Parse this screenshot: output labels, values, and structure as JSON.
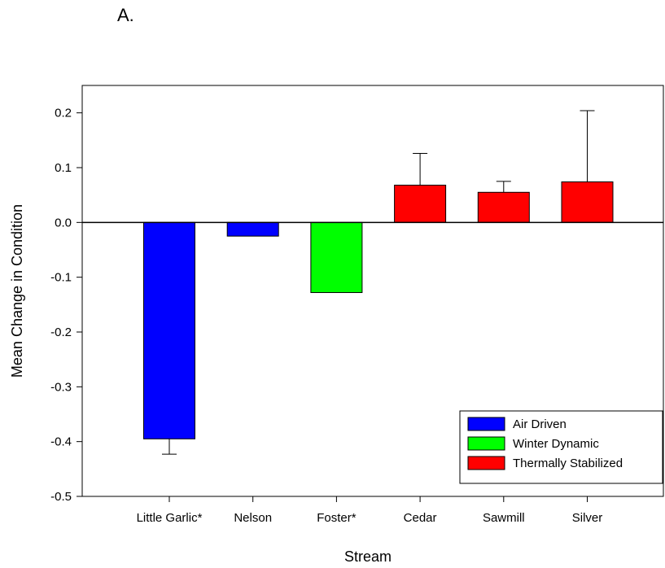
{
  "panel_label": "A.",
  "colors": {
    "Air Driven": "#0000ff",
    "Winter Dynamic": "#00ff00",
    "Thermally Stabilized": "#ff0000"
  },
  "chart_data": {
    "type": "bar",
    "title": "",
    "xlabel": "Stream",
    "ylabel": "Mean Change in Condition",
    "ylim": [
      -0.5,
      0.25
    ],
    "yticks": [
      -0.5,
      -0.4,
      -0.3,
      -0.2,
      -0.1,
      0.0,
      0.1,
      0.2
    ],
    "ytick_labels": [
      "-0.5",
      "-0.4",
      "-0.3",
      "-0.2",
      "-0.1",
      "0.0",
      "0.1",
      "0.2"
    ],
    "grid": false,
    "legend_position": "bottom-right",
    "categories": [
      "Little Garlic*",
      "Nelson",
      "Foster*",
      "Cedar",
      "Sawmill",
      "Silver"
    ],
    "values": [
      -0.395,
      -0.025,
      -0.128,
      0.068,
      0.055,
      0.074
    ],
    "error_plus": [
      0.028,
      null,
      null,
      0.058,
      0.02,
      0.13
    ],
    "groups": [
      "Air Driven",
      "Air Driven",
      "Winter Dynamic",
      "Thermally Stabilized",
      "Thermally Stabilized",
      "Thermally Stabilized"
    ],
    "legend": [
      "Air Driven",
      "Winter Dynamic",
      "Thermally Stabilized"
    ]
  }
}
